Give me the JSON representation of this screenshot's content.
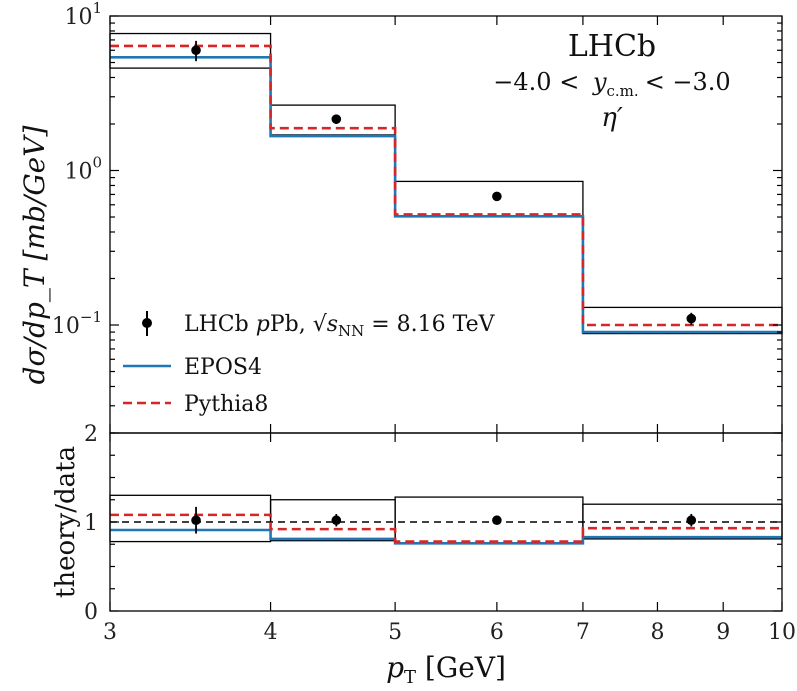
{
  "chart_data": [
    {
      "type": "step",
      "panel": "main",
      "xscale": "log",
      "yscale": "log",
      "xlim": [
        3,
        10
      ],
      "ylim": [
        0.02,
        10
      ],
      "ylabel": "dσ/dp_T [mb/GeV]",
      "yticks": [
        {
          "value": 10,
          "base": "10",
          "exp": "1"
        },
        {
          "value": 1,
          "base": "10",
          "exp": "0"
        },
        {
          "value": 0.1,
          "base": "10",
          "exp": "−1"
        }
      ],
      "annotation": {
        "experiment": "LHCb",
        "rapidity_lo": "−4.0 <",
        "rapidity_var": "y",
        "rapidity_sub": "c.m.",
        "rapidity_hi": "< −3.0",
        "particle": "η′"
      },
      "bins": [
        [
          3,
          4
        ],
        [
          4,
          5
        ],
        [
          5,
          7
        ],
        [
          7,
          10
        ]
      ],
      "data": {
        "name": "LHCb pPb",
        "x": [
          3.5,
          4.5,
          6.0,
          8.5
        ],
        "y": [
          6.0,
          2.15,
          0.68,
          0.11
        ],
        "err_lo": [
          0.9,
          0.15,
          0.03,
          0.01
        ],
        "err_hi": [
          0.9,
          0.15,
          0.03,
          0.01
        ],
        "syst_lo": [
          4.6,
          1.7,
          0.51,
          0.088
        ],
        "syst_hi": [
          7.7,
          2.65,
          0.85,
          0.13
        ]
      },
      "series": [
        {
          "name": "EPOS4",
          "color": "#1f77b4",
          "style": "solid",
          "values": [
            5.4,
            1.67,
            0.505,
            0.09
          ]
        },
        {
          "name": "Pythia8",
          "color": "#d62728",
          "style": "dashed",
          "values": [
            6.4,
            1.88,
            0.52,
            0.1
          ]
        }
      ],
      "legend": {
        "placement": "lower-left",
        "data_label": "LHCb ",
        "data_label_italic": "p",
        "data_label_rest": "Pb, ",
        "sqrt_label": "s",
        "sqrt_sub": "NN",
        "energy_label": " = 8.16 TeV",
        "epos_label": "EPOS4",
        "pythia_label": "Pythia8"
      }
    },
    {
      "type": "step",
      "panel": "ratio",
      "xscale": "log",
      "xlim": [
        3,
        10
      ],
      "ylim": [
        0,
        2
      ],
      "ylabel": "theory/data",
      "xlabel_var": "p",
      "xlabel_sub": "T",
      "xlabel_unit": " [GeV]",
      "xticks": [
        3,
        4,
        5,
        6,
        7,
        8,
        9,
        10
      ],
      "yticks": [
        0,
        1,
        2
      ],
      "reference_line": 1.0,
      "bins": [
        [
          3,
          4
        ],
        [
          4,
          5
        ],
        [
          5,
          7
        ],
        [
          7,
          10
        ]
      ],
      "data": {
        "x": [
          3.5,
          4.5,
          6.0,
          8.5
        ],
        "y": [
          1.02,
          1.02,
          1.02,
          1.02
        ],
        "err_lo": [
          0.15,
          0.07,
          0.03,
          0.07
        ],
        "err_hi": [
          0.15,
          0.07,
          0.03,
          0.07
        ],
        "syst_lo": [
          0.78,
          0.79,
          0.76,
          0.81
        ],
        "syst_hi": [
          1.3,
          1.25,
          1.28,
          1.2
        ]
      },
      "series": [
        {
          "name": "EPOS4",
          "color": "#1f77b4",
          "style": "solid",
          "values": [
            0.91,
            0.81,
            0.76,
            0.83
          ]
        },
        {
          "name": "Pythia8",
          "color": "#d62728",
          "style": "dashed",
          "values": [
            1.08,
            0.92,
            0.78,
            0.93
          ]
        }
      ]
    }
  ]
}
